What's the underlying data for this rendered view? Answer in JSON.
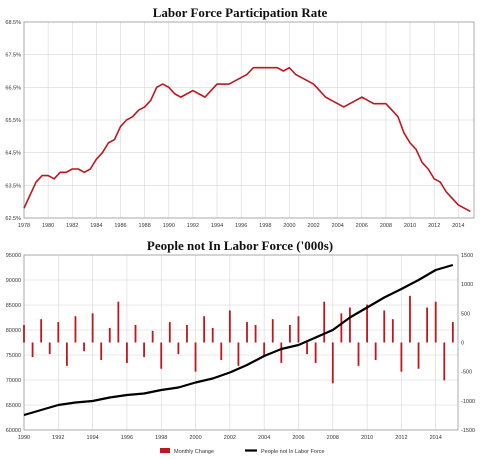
{
  "chart_data": [
    {
      "type": "line",
      "title": "Labor Force Participation Rate",
      "y_ticks": [
        "68.5%",
        "67.5%",
        "66.5%",
        "65.5%",
        "64.5%",
        "63.5%",
        "62.5%"
      ],
      "x_ticks": [
        "1978",
        "1980",
        "1982",
        "1984",
        "1986",
        "1988",
        "1990",
        "1992",
        "1994",
        "1996",
        "1998",
        "2000",
        "2002",
        "2004",
        "2006",
        "2008",
        "2010",
        "2012",
        "2014"
      ],
      "ylim": [
        62.5,
        68.5
      ],
      "xlim": [
        1978,
        2015.3
      ],
      "grid": true,
      "series": [
        {
          "color": "#c0161d",
          "x": [
            1978,
            1978.5,
            1979,
            1979.5,
            1980,
            1980.5,
            1981,
            1981.5,
            1982,
            1982.5,
            1983,
            1983.5,
            1984,
            1984.5,
            1985,
            1985.5,
            1986,
            1986.5,
            1987,
            1987.5,
            1988,
            1988.5,
            1989,
            1989.5,
            1990,
            1990.5,
            1991,
            1991.5,
            1992,
            1992.5,
            1993,
            1993.5,
            1994,
            1994.5,
            1995,
            1995.5,
            1996,
            1996.5,
            1997,
            1997.5,
            1998,
            1998.5,
            1999,
            1999.5,
            2000,
            2000.5,
            2001,
            2001.5,
            2002,
            2002.5,
            2003,
            2003.5,
            2004,
            2004.5,
            2005,
            2005.5,
            2006,
            2006.5,
            2007,
            2007.5,
            2008,
            2008.5,
            2009,
            2009.5,
            2010,
            2010.5,
            2011,
            2011.5,
            2012,
            2012.5,
            2013,
            2013.5,
            2014,
            2014.5,
            2015
          ],
          "y": [
            62.8,
            63.2,
            63.6,
            63.8,
            63.8,
            63.7,
            63.9,
            63.9,
            64.0,
            64.0,
            63.9,
            64.0,
            64.3,
            64.5,
            64.8,
            64.9,
            65.3,
            65.5,
            65.6,
            65.8,
            65.9,
            66.1,
            66.5,
            66.6,
            66.5,
            66.3,
            66.2,
            66.3,
            66.4,
            66.3,
            66.2,
            66.4,
            66.6,
            66.6,
            66.6,
            66.7,
            66.8,
            66.9,
            67.1,
            67.1,
            67.1,
            67.1,
            67.1,
            67.0,
            67.1,
            66.9,
            66.8,
            66.7,
            66.6,
            66.4,
            66.2,
            66.1,
            66.0,
            65.9,
            66.0,
            66.1,
            66.2,
            66.1,
            66.0,
            66.0,
            66.0,
            65.8,
            65.6,
            65.1,
            64.8,
            64.6,
            64.2,
            64.0,
            63.7,
            63.6,
            63.3,
            63.1,
            62.9,
            62.8,
            62.7
          ]
        }
      ]
    },
    {
      "type": "bar+line",
      "title": "People not In Labor Force ('000s)",
      "y_left_ticks": [
        "95000",
        "90000",
        "85000",
        "80000",
        "75000",
        "70000",
        "65000",
        "60000"
      ],
      "y_right_ticks": [
        "1500",
        "1000",
        "500",
        "0",
        "-500",
        "-1000",
        "-1500"
      ],
      "x_ticks": [
        "1990",
        "1992",
        "1994",
        "1996",
        "1998",
        "2000",
        "2002",
        "2004",
        "2006",
        "2008",
        "2010",
        "2012",
        "2014"
      ],
      "ylim_left": [
        60000,
        95000
      ],
      "ylim_right": [
        -1500,
        1500
      ],
      "xlim": [
        1990,
        2015.3
      ],
      "legend": [
        "Monthly Change",
        "People not In Labor Force"
      ],
      "legend_position": "bottom",
      "series": [
        {
          "name": "Monthly Change",
          "type": "bar",
          "axis": "right",
          "color": "#c0161d",
          "x": [
            1990.0,
            1990.5,
            1991.0,
            1991.5,
            1992.0,
            1992.5,
            1993.0,
            1993.5,
            1994.0,
            1994.5,
            1995.0,
            1995.5,
            1996.0,
            1996.5,
            1997.0,
            1997.5,
            1998.0,
            1998.5,
            1999.0,
            1999.5,
            2000.0,
            2000.5,
            2001.0,
            2001.5,
            2002.0,
            2002.5,
            2003.0,
            2003.5,
            2004.0,
            2004.5,
            2005.0,
            2005.5,
            2006.0,
            2006.5,
            2007.0,
            2007.5,
            2008.0,
            2008.5,
            2009.0,
            2009.5,
            2010.0,
            2010.5,
            2011.0,
            2011.5,
            2012.0,
            2012.5,
            2013.0,
            2013.5,
            2014.0,
            2014.5,
            2015.0
          ],
          "values": [
            300,
            -250,
            400,
            -200,
            350,
            -400,
            450,
            -150,
            500,
            -300,
            250,
            700,
            -350,
            300,
            -250,
            200,
            -450,
            350,
            -200,
            300,
            -500,
            450,
            250,
            -300,
            550,
            -400,
            350,
            300,
            -250,
            400,
            -350,
            300,
            450,
            -200,
            -350,
            700,
            -700,
            500,
            600,
            -400,
            650,
            -300,
            550,
            400,
            -500,
            800,
            -450,
            600,
            700,
            -650,
            350
          ]
        },
        {
          "name": "People not In Labor Force",
          "type": "line",
          "axis": "left",
          "color": "#000000",
          "x": [
            1990,
            1991,
            1992,
            1993,
            1994,
            1995,
            1996,
            1997,
            1998,
            1999,
            2000,
            2001,
            2002,
            2003,
            2004,
            2005,
            2006,
            2007,
            2008,
            2009,
            2010,
            2011,
            2012,
            2013,
            2014,
            2015
          ],
          "y": [
            63000,
            64000,
            65000,
            65500,
            65800,
            66500,
            67000,
            67300,
            68000,
            68500,
            69500,
            70300,
            71500,
            73000,
            74800,
            76200,
            77000,
            78500,
            80000,
            82500,
            84500,
            86500,
            88200,
            90000,
            92000,
            93000
          ]
        }
      ]
    }
  ]
}
